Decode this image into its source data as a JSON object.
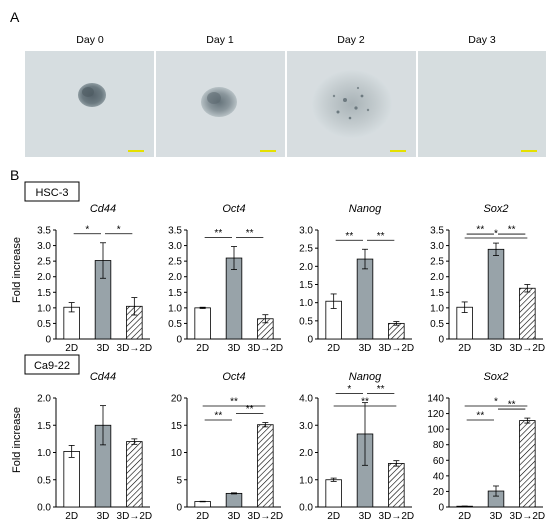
{
  "panel_a": {
    "label": "A",
    "days": [
      "Day 0",
      "Day 1",
      "Day 2",
      "Day 3"
    ],
    "colors": {
      "background": "#d6dde0",
      "cell": "#5a6870",
      "scale_bar": "#e5e000"
    }
  },
  "panel_b": {
    "label": "B",
    "colors": {
      "hatched_bar": "#ffffff",
      "bar_3d": "#98a3a9",
      "outline": "#000000"
    }
  },
  "chart_data": [
    {
      "type": "bar",
      "row_label": "HSC-3",
      "title": "Cd44",
      "ylabel": "Fold increase",
      "categories": [
        "2D",
        "3D",
        "3D→2D"
      ],
      "values": [
        1.02,
        2.52,
        1.05
      ],
      "errors": [
        0.15,
        0.57,
        0.28
      ],
      "ylim": [
        0,
        3.5
      ],
      "yticks": [
        "0",
        "0.5",
        "1.0",
        "1.5",
        "2.0",
        "2.5",
        "3.0",
        "3.5"
      ],
      "sig": [
        {
          "from": 0,
          "to": 1,
          "label": "*"
        },
        {
          "from": 1,
          "to": 2,
          "label": "*"
        }
      ]
    },
    {
      "type": "bar",
      "title": "Oct4",
      "categories": [
        "2D",
        "3D",
        "3D→2D"
      ],
      "values": [
        1.0,
        2.6,
        0.65
      ],
      "errors": [
        0.02,
        0.37,
        0.13
      ],
      "ylim": [
        0,
        3.5
      ],
      "yticks": [
        "0",
        "0.5",
        "1.0",
        "1.5",
        "2.0",
        "2.5",
        "3.0",
        "3.5"
      ],
      "sig": [
        {
          "from": 0,
          "to": 1,
          "label": "**"
        },
        {
          "from": 1,
          "to": 2,
          "label": "**"
        }
      ]
    },
    {
      "type": "bar",
      "title": "Nanog",
      "categories": [
        "2D",
        "3D",
        "3D→2D"
      ],
      "values": [
        1.04,
        2.2,
        0.43
      ],
      "errors": [
        0.2,
        0.27,
        0.05
      ],
      "ylim": [
        0,
        3.0
      ],
      "yticks": [
        "0",
        "0.5",
        "1.0",
        "1.5",
        "2.0",
        "2.5",
        "3.0"
      ],
      "sig": [
        {
          "from": 0,
          "to": 1,
          "label": "**"
        },
        {
          "from": 1,
          "to": 2,
          "label": "**"
        }
      ]
    },
    {
      "type": "bar",
      "title": "Sox2",
      "categories": [
        "2D",
        "3D",
        "3D→2D"
      ],
      "values": [
        1.02,
        2.88,
        1.63
      ],
      "errors": [
        0.17,
        0.2,
        0.12
      ],
      "ylim": [
        0,
        3.5
      ],
      "yticks": [
        "0",
        "0.5",
        "1.0",
        "1.5",
        "2.0",
        "2.5",
        "3.0",
        "3.5"
      ],
      "sig": [
        {
          "from": 0,
          "to": 1,
          "label": "**"
        },
        {
          "from": 1,
          "to": 2,
          "label": "**"
        },
        {
          "from": 0,
          "to": 2,
          "label": "*"
        }
      ]
    },
    {
      "type": "bar",
      "row_label": "Ca9-22",
      "title": "Cd44",
      "ylabel": "Fold increase",
      "categories": [
        "2D",
        "3D",
        "3D→2D"
      ],
      "values": [
        1.02,
        1.5,
        1.2
      ],
      "errors": [
        0.11,
        0.36,
        0.05
      ],
      "ylim": [
        0,
        2.0
      ],
      "yticks": [
        "0.0",
        "0.5",
        "1.0",
        "1.5",
        "2.0"
      ],
      "sig": []
    },
    {
      "type": "bar",
      "title": "Oct4",
      "categories": [
        "2D",
        "3D",
        "3D→2D"
      ],
      "values": [
        1.0,
        2.5,
        15.1
      ],
      "errors": [
        0.05,
        0.1,
        0.4
      ],
      "ylim": [
        0,
        20
      ],
      "yticks": [
        "0",
        "5",
        "10",
        "15",
        "20"
      ],
      "sig": [
        {
          "from": 0,
          "to": 1,
          "label": "**"
        },
        {
          "from": 1,
          "to": 2,
          "label": "**"
        },
        {
          "from": 0,
          "to": 2,
          "label": "**"
        }
      ]
    },
    {
      "type": "bar",
      "title": "Nanog",
      "categories": [
        "2D",
        "3D",
        "3D→2D"
      ],
      "values": [
        1.0,
        2.68,
        1.6
      ],
      "errors": [
        0.06,
        1.15,
        0.1
      ],
      "ylim": [
        0,
        4.0
      ],
      "yticks": [
        "0.0",
        "1.0",
        "2.0",
        "3.0",
        "4.0"
      ],
      "sig": [
        {
          "from": 0,
          "to": 1,
          "label": "*"
        },
        {
          "from": 1,
          "to": 2,
          "label": "**"
        },
        {
          "from": 0,
          "to": 2,
          "label": "**"
        }
      ]
    },
    {
      "type": "bar",
      "title": "Sox2",
      "categories": [
        "2D",
        "3D",
        "3D→2D"
      ],
      "values": [
        1.0,
        20.5,
        111
      ],
      "errors": [
        0.2,
        6.5,
        3.2
      ],
      "ylim": [
        0,
        140
      ],
      "yticks": [
        "0",
        "20",
        "40",
        "60",
        "80",
        "100",
        "120",
        "140"
      ],
      "sig": [
        {
          "from": 0,
          "to": 1,
          "label": "**"
        },
        {
          "from": 1,
          "to": 2,
          "label": "**"
        },
        {
          "from": 0,
          "to": 2,
          "label": "*"
        }
      ]
    }
  ]
}
